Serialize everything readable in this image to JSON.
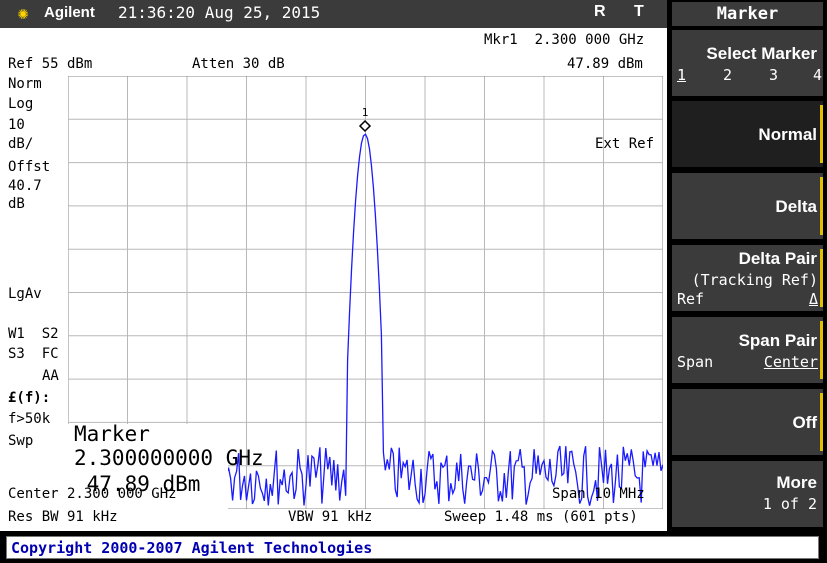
{
  "header": {
    "brand": "Agilent",
    "datetime": "21:36:20  Aug 25, 2015",
    "flag_r": "R",
    "flag_t": "T"
  },
  "screen": {
    "mkr_readout": "Mkr1  2.300 000 GHz",
    "mkr_level": "47.89 dBm",
    "ref_level": "Ref 55 dBm",
    "atten": "Atten 30 dB",
    "ext_ref": "Ext Ref",
    "left_labels": {
      "norm": "Norm",
      "log": "Log",
      "scale_value": "10",
      "scale_unit": "dB/",
      "offst": "Offst",
      "offset_value": "40.7",
      "offset_unit": "dB",
      "lgav": "LgAv",
      "w1s2": "W1  S2",
      "s3fc": "S3  FC",
      "aa": "AA",
      "ef": "£(f):",
      "f50k": "f>50k",
      "swp": "Swp"
    },
    "marker_number": "1",
    "center": "Center 2.300 000 GHz",
    "span": "Span 10 MHz",
    "res_bw": "Res BW 91 kHz",
    "vbw": "VBW 91 kHz",
    "sweep": "Sweep 1.48 ms (601 pts)",
    "marker_box": {
      "title": "Marker",
      "freq": "2.300000000 GHz",
      "level": " 47.89 dBm"
    }
  },
  "copyright": "Copyright 2000-2007 Agilent Technologies",
  "menu": {
    "title": "Marker",
    "select_marker": {
      "label": "Select Marker",
      "options": [
        "1",
        "2",
        "3",
        "4"
      ]
    },
    "normal": "Normal",
    "delta": "Delta",
    "delta_pair": {
      "label": "Delta Pair",
      "sub": "(Tracking Ref)",
      "ref": "Ref",
      "glyph": "Δ"
    },
    "span_pair": {
      "label": "Span Pair",
      "left": "Span",
      "right": "Center"
    },
    "off": "Off",
    "more": {
      "label": "More",
      "sub": "1 of 2"
    }
  },
  "colors": {
    "trace": "#1a1aff",
    "accent": "#e2c000",
    "copyright_text": "#0000b0"
  }
}
